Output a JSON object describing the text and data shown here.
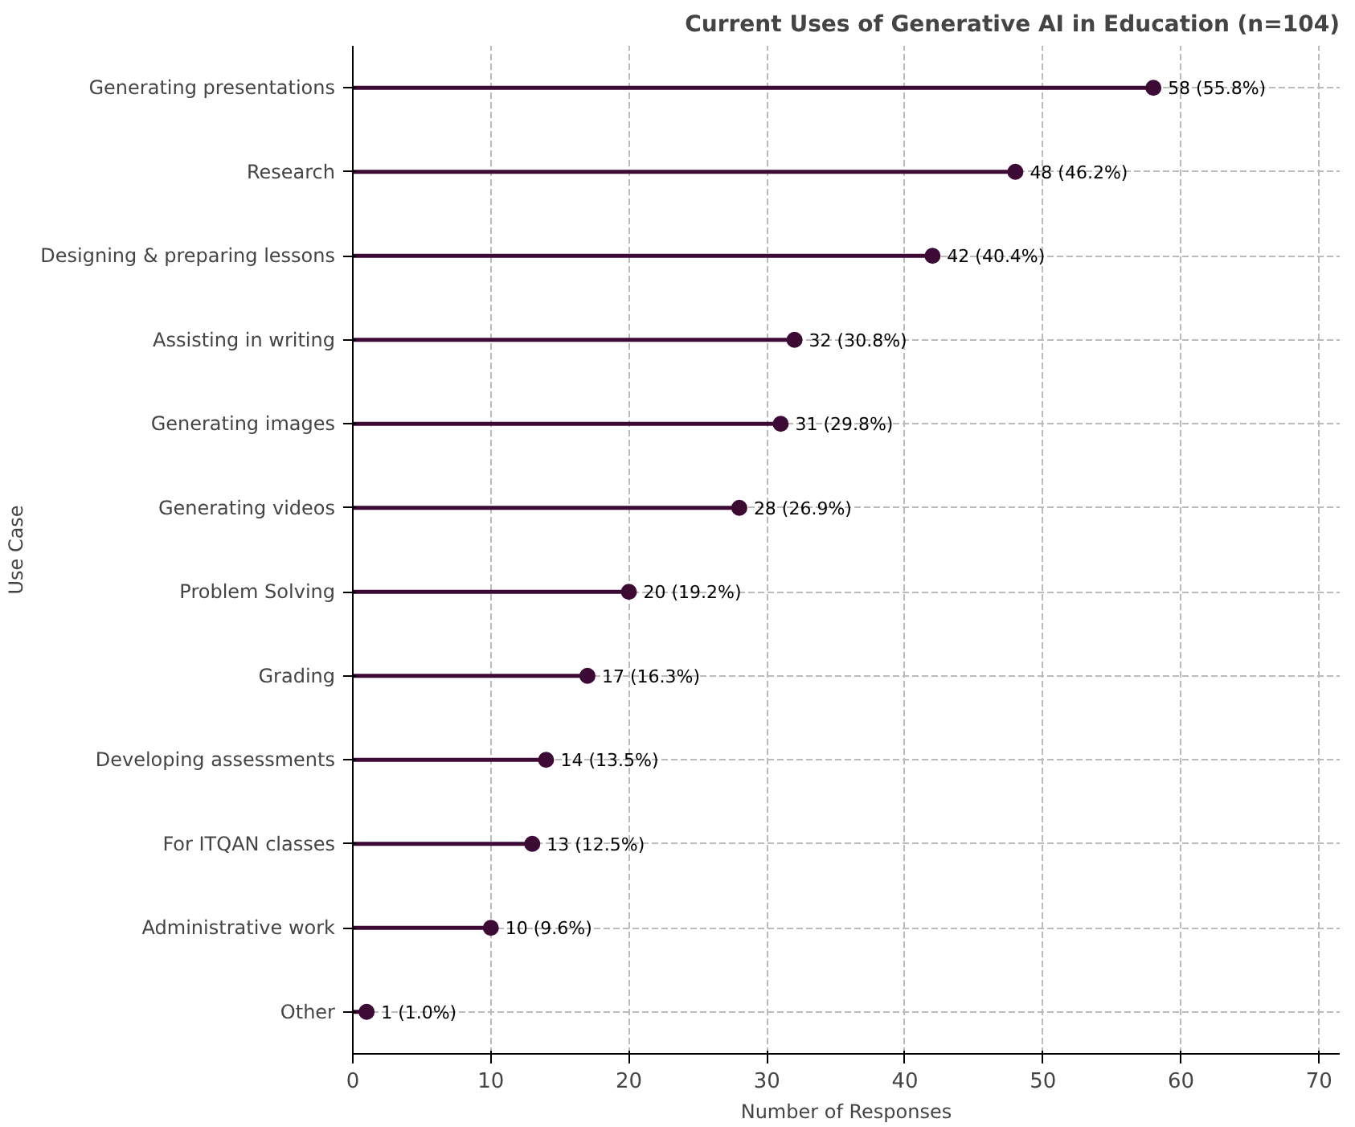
{
  "chart_data": {
    "type": "lollipop",
    "orientation": "horizontal",
    "title": "Current Uses of Generative AI in Education (n=104)",
    "xlabel": "Number of Responses",
    "ylabel": "Use Case",
    "categories": [
      "Generating presentations",
      "Research",
      "Designing & preparing lessons",
      "Assisting in writing",
      "Generating images",
      "Generating videos",
      "Problem Solving",
      "Grading",
      "Developing assessments",
      "For ITQAN classes",
      "Administrative work",
      "Other"
    ],
    "values": [
      58,
      48,
      42,
      32,
      31,
      28,
      20,
      17,
      14,
      13,
      10,
      1
    ],
    "value_labels": [
      "58 (55.8%)",
      "48 (46.2%)",
      "42 (40.4%)",
      "32 (30.8%)",
      "31 (29.8%)",
      "28 (26.9%)",
      "20 (19.2%)",
      "17 (16.3%)",
      "14 (13.5%)",
      "13 (12.5%)",
      "10 (9.6%)",
      "1 (1.0%)"
    ],
    "color": "#3d0a36",
    "marker": "circle",
    "grid": true,
    "xlim": [
      0,
      71.5
    ],
    "xticks": [
      0,
      10,
      20,
      30,
      40,
      50,
      60,
      70
    ]
  }
}
